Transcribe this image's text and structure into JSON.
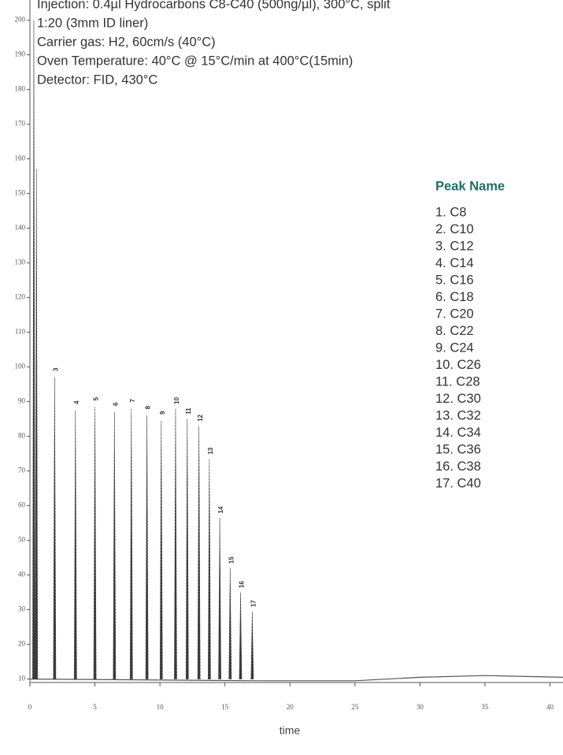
{
  "chart_data": {
    "type": "chromatogram",
    "info": [
      "Injection: 0.4µl Hydrocarbons C8-C40 (500ng/µl), 300°C, split",
      "1:20 (3mm ID liner)",
      "Carrier gas: H2, 60cm/s (40°C)",
      "Oven Temperature: 40°C @ 15°C/min at 400°C(15min)",
      "Detector: FID, 430°C"
    ],
    "legend_title": "Peak Name",
    "legend_items": [
      "1. C8",
      "2. C10",
      "3. C12",
      "4. C14",
      "5. C16",
      "6. C18",
      "7. C20",
      "8. C22",
      "9. C24",
      "10. C26",
      "11. C28",
      "12. C30",
      "13. C32",
      "14. C34",
      "15. C36",
      "16. C38",
      "17. C40"
    ],
    "x_label": "time",
    "peaks": {
      "x": [
        0.3,
        0.5,
        1.9,
        3.5,
        5.0,
        6.5,
        7.8,
        9.0,
        10.1,
        11.2,
        12.1,
        13.0,
        13.8,
        14.6,
        15.4,
        16.2,
        17.1
      ],
      "values": [
        200,
        157,
        97,
        87.5,
        88.5,
        87,
        88,
        86,
        84.5,
        88,
        85,
        83,
        73.5,
        56.5,
        42,
        35,
        29.5
      ],
      "labels": [
        null,
        null,
        "3",
        "4",
        "5",
        "6",
        "7",
        "8",
        "9",
        "10",
        "11",
        "12",
        "13",
        "14",
        "15",
        "16",
        "17"
      ],
      "color": "#3a3a3a"
    },
    "baseline": {
      "x": [
        0,
        17.5,
        25,
        30,
        35,
        41
      ],
      "values": [
        10,
        9.5,
        9.5,
        10.5,
        11,
        10.5
      ],
      "color": "#555555"
    },
    "xlim": [
      0,
      41
    ],
    "ylim": [
      9,
      204
    ],
    "xticks": [
      0,
      5,
      10,
      15,
      20,
      25,
      30,
      35,
      40
    ],
    "yticks": [
      10,
      20,
      30,
      40,
      50,
      60,
      70,
      80,
      90,
      100,
      110,
      120,
      130,
      140,
      150,
      160,
      170,
      180,
      190,
      200
    ],
    "legend_color": "#1b6f6c"
  }
}
